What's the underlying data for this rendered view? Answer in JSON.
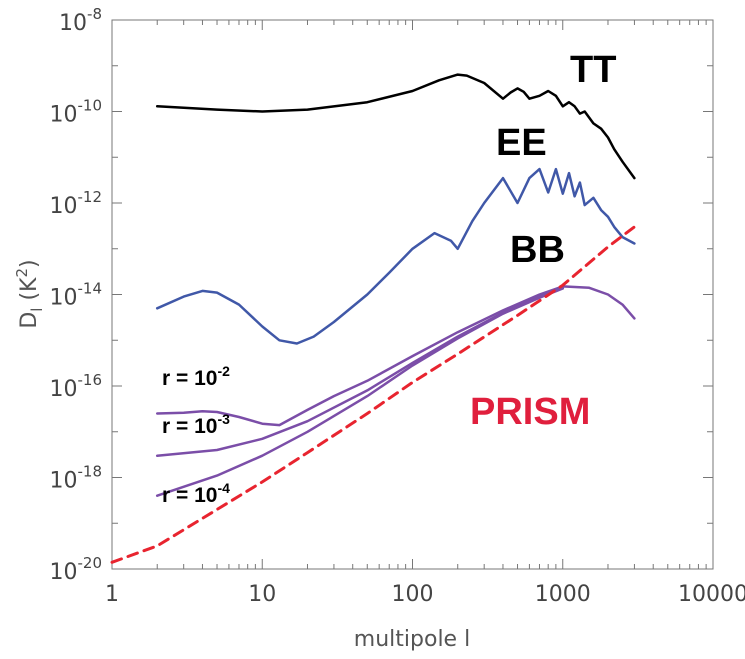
{
  "chart_data": {
    "type": "line",
    "title": "",
    "xlabel": "multipole l",
    "ylabel": "Dl (K²)",
    "x_scale": "log",
    "y_scale": "log",
    "xlim": [
      1,
      10000
    ],
    "ylim": [
      1e-20,
      1e-08
    ],
    "x_ticks": [
      {
        "value": 1,
        "label": "1"
      },
      {
        "value": 10,
        "label": "10"
      },
      {
        "value": 100,
        "label": "100"
      },
      {
        "value": 1000,
        "label": "1000"
      },
      {
        "value": 10000,
        "label": "10000"
      }
    ],
    "y_ticks": [
      {
        "value": 1e-20,
        "base": "10",
        "exp": "-20"
      },
      {
        "value": 1e-18,
        "base": "10",
        "exp": "-18"
      },
      {
        "value": 1e-16,
        "base": "10",
        "exp": "-16"
      },
      {
        "value": 1e-14,
        "base": "10",
        "exp": "-14"
      },
      {
        "value": 1e-12,
        "base": "10",
        "exp": "-12"
      },
      {
        "value": 1e-10,
        "base": "10",
        "exp": "-10"
      },
      {
        "value": 1e-08,
        "base": "10",
        "exp": "-8"
      }
    ],
    "ylabel_parts": {
      "main": "D",
      "sub": "l",
      "open": " (K",
      "sup": "2",
      "close": ")"
    },
    "labels": {
      "tt": "TT",
      "ee": "EE",
      "bb": "BB",
      "prism": "PRISM",
      "r_prefix": "r = 10",
      "r1_exp": "-2",
      "r2_exp": "-3",
      "r3_exp": "-4"
    },
    "series": [
      {
        "name": "TT",
        "color": "#000000",
        "dash": false,
        "x": [
          2,
          5,
          10,
          20,
          50,
          100,
          150,
          200,
          230,
          300,
          400,
          450,
          500,
          550,
          600,
          700,
          800,
          900,
          1000,
          1100,
          1200,
          1300,
          1400,
          1600,
          1800,
          2000,
          2200,
          2500,
          3000
        ],
        "y": [
          1.3e-10,
          1.1e-10,
          1e-10,
          1.1e-10,
          1.6e-10,
          2.8e-10,
          4.8e-10,
          6.4e-10,
          6.1e-10,
          4.2e-10,
          1.9e-10,
          2.6e-10,
          3.2e-10,
          2.7e-10,
          1.9e-10,
          2.2e-10,
          2.8e-10,
          2.2e-10,
          1.3e-10,
          1.6e-10,
          1.3e-10,
          9e-11,
          1e-10,
          5.5e-11,
          4.2e-11,
          2.7e-11,
          1.5e-11,
          8e-12,
          3.5e-12
        ]
      },
      {
        "name": "EE",
        "color": "#4058a8",
        "dash": false,
        "x": [
          2,
          3,
          4,
          5,
          7,
          10,
          13,
          17,
          22,
          30,
          50,
          70,
          100,
          140,
          180,
          200,
          250,
          300,
          400,
          500,
          600,
          700,
          800,
          900,
          1000,
          1100,
          1200,
          1300,
          1400,
          1600,
          1800,
          2000,
          2200,
          2500,
          3000
        ],
        "y": [
          5e-15,
          9e-15,
          1.2e-14,
          1.1e-14,
          6e-15,
          2e-15,
          1e-15,
          8.5e-16,
          1.2e-15,
          2.5e-15,
          1e-14,
          3e-14,
          1e-13,
          2.2e-13,
          1.5e-13,
          1e-13,
          4e-13,
          1e-12,
          3.5e-12,
          1e-12,
          3.5e-12,
          5.5e-12,
          1.7e-12,
          5.5e-12,
          1.6e-12,
          4.5e-12,
          1.4e-12,
          2.8e-12,
          9e-13,
          1.3e-12,
          7e-13,
          5e-13,
          3e-13,
          1.8e-13,
          1.3e-13
        ]
      },
      {
        "name": "BB",
        "color": "#7b4ea8",
        "dash": false,
        "x": [
          2,
          3,
          4,
          5,
          7,
          10,
          13,
          20,
          30,
          50,
          100,
          200,
          400,
          700,
          1000,
          1500,
          2000,
          2500,
          3000
        ],
        "y": [
          2.5e-17,
          2.6e-17,
          2.8e-17,
          2.7e-17,
          2.1e-17,
          1.5e-17,
          1.4e-17,
          3e-17,
          6e-17,
          1.3e-16,
          4.5e-16,
          1.5e-15,
          4.5e-15,
          1e-14,
          1.5e-14,
          1.4e-14,
          1e-14,
          6e-15,
          3e-15
        ]
      },
      {
        "name": "BB",
        "color": "#7b4ea8",
        "dash": false,
        "x": [
          2,
          5,
          10,
          20,
          50,
          100,
          200,
          400,
          700,
          1000
        ],
        "y": [
          3e-18,
          4e-18,
          7e-18,
          1.7e-17,
          8e-17,
          3.2e-16,
          1.2e-15,
          4e-15,
          9e-15,
          1.4e-14
        ]
      },
      {
        "name": "BB",
        "color": "#7b4ea8",
        "dash": false,
        "x": [
          2,
          5,
          10,
          20,
          50,
          100,
          200,
          400,
          700,
          1000
        ],
        "y": [
          4e-19,
          1.1e-18,
          3e-18,
          1e-17,
          6e-17,
          2.8e-16,
          1.1e-15,
          3.8e-15,
          8.5e-15,
          1.35e-14
        ]
      },
      {
        "name": "PRISM",
        "color": "#e8242f",
        "dash": true,
        "x": [
          1,
          2,
          5,
          10,
          20,
          50,
          100,
          200,
          500,
          1000,
          2000,
          3000
        ],
        "y": [
          1.4e-20,
          3.2e-20,
          2e-19,
          8e-19,
          3.5e-18,
          2.5e-17,
          1.2e-16,
          5e-16,
          3.5e-15,
          1.6e-14,
          1.1e-13,
          3e-13
        ]
      }
    ]
  }
}
